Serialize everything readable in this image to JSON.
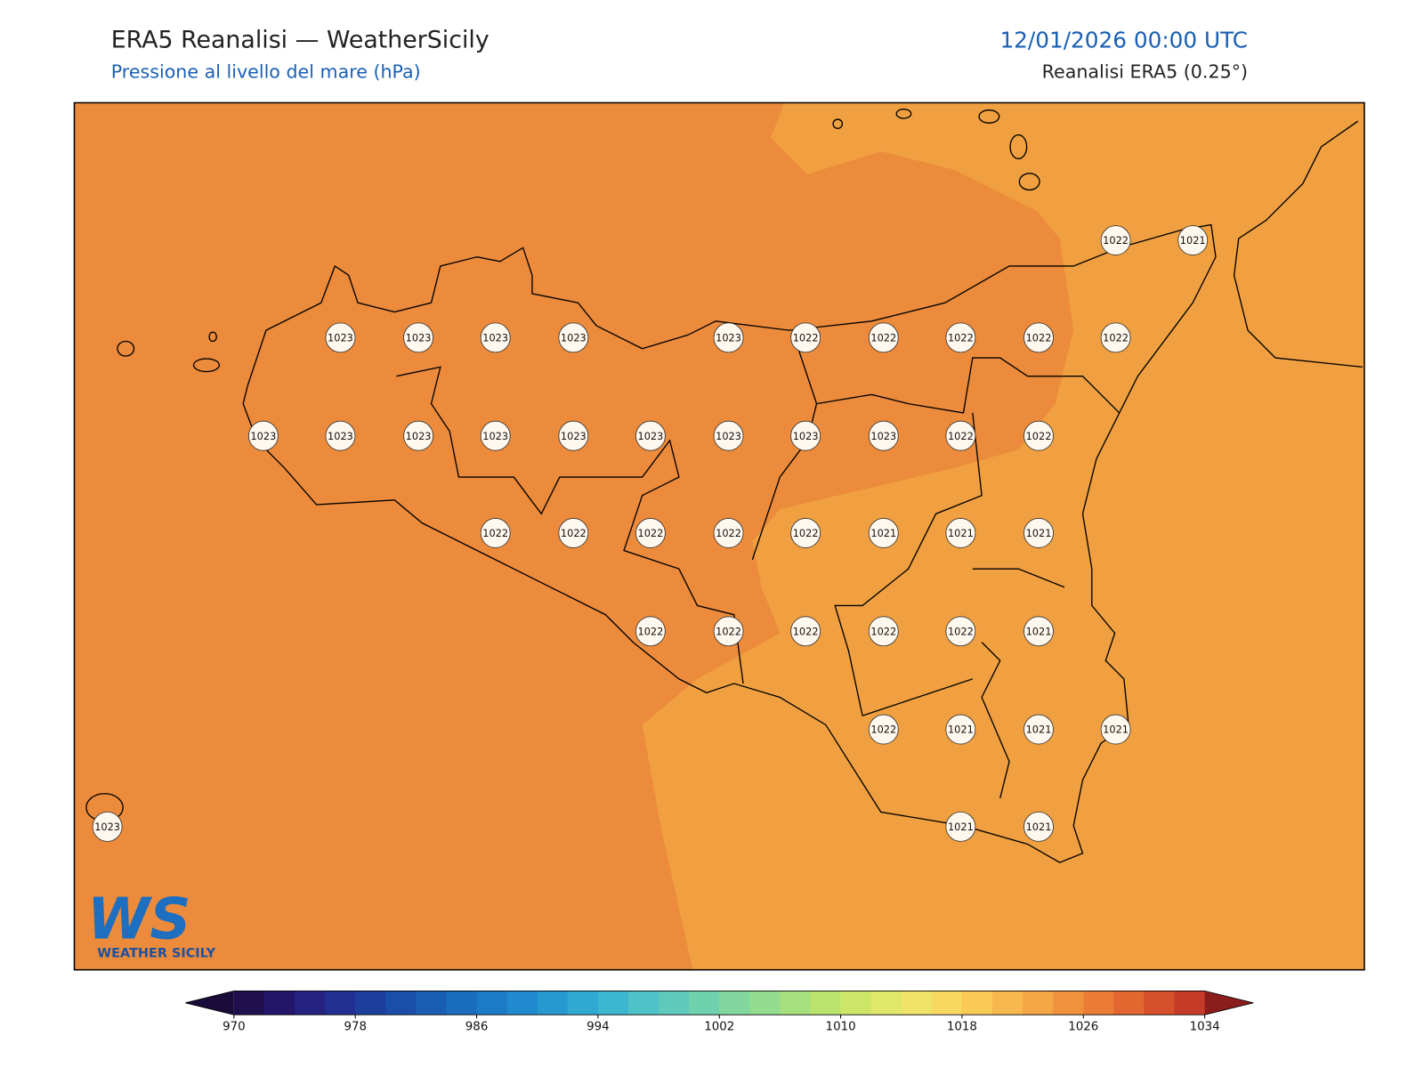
{
  "header": {
    "title": "ERA5 Reanalisi — WeatherSicily",
    "subtitle": "Pressione al livello del mare (hPa)",
    "datetime": "12/01/2026 00:00 UTC",
    "source": "Reanalisi ERA5 (0.25°)"
  },
  "map": {
    "pressure_labels": [
      1022,
      1021,
      1023,
      1023,
      1023,
      1023,
      1023,
      1022,
      1022,
      1022,
      1022,
      1022,
      1023,
      1023,
      1023,
      1023,
      1023,
      1023,
      1023,
      1023,
      1023,
      1022,
      1022,
      1022,
      1022,
      1022,
      1022,
      1022,
      1021,
      1021,
      1021,
      1022,
      1022,
      1022,
      1022,
      1022,
      1021,
      1022,
      1021,
      1021,
      1021,
      1023,
      1021,
      1021
    ]
  },
  "colorbar": {
    "ticks": [
      970,
      978,
      986,
      994,
      1002,
      1010,
      1018,
      1026,
      1034
    ],
    "colors": [
      "#1f0f4d",
      "#23166a",
      "#24217f",
      "#213090",
      "#1d3f9c",
      "#1a4ea8",
      "#1a5db4",
      "#1a6cbf",
      "#1b7bc7",
      "#1f8acd",
      "#2699d1",
      "#30a9d2",
      "#3db6cf",
      "#4ec2c7",
      "#5fcabc",
      "#6fd1ad",
      "#82d79e",
      "#94dc8e",
      "#a8e07e",
      "#bbe46f",
      "#cde668",
      "#dfe868",
      "#efe36a",
      "#f9d862",
      "#fbc957",
      "#f8b84e",
      "#f4a645",
      "#f0923d",
      "#ea7c35",
      "#e2662f",
      "#d5502b",
      "#c53b28"
    ],
    "under_color": "#190c3a",
    "over_color": "#8b1d1d"
  },
  "logo": {
    "mark": "WS",
    "name": "WEATHER SICILY"
  }
}
